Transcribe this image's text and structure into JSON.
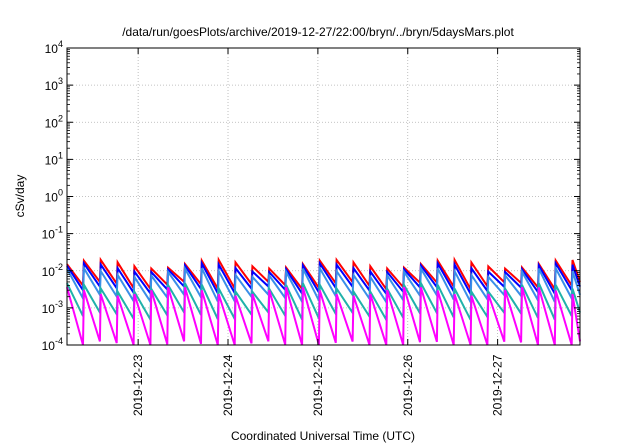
{
  "chart_data": {
    "type": "line",
    "title": "/data/run/goesPlots/archive/2019-12-27/22:00/bryn/../bryn/5daysMars.plot",
    "xlabel": "Coordinated Universal Time (UTC)",
    "ylabel": "cSv/day",
    "yscale": "log",
    "ylim": [
      0.0001,
      10000
    ],
    "xlim": [
      "2019-12-22 05:00",
      "2019-12-27 22:00"
    ],
    "grid": true,
    "legend": "none",
    "y_ticks": [
      {
        "base": "10",
        "exp": "-4"
      },
      {
        "base": "10",
        "exp": "-3"
      },
      {
        "base": "10",
        "exp": "-2"
      },
      {
        "base": "10",
        "exp": "-1"
      },
      {
        "base": "10",
        "exp": "0"
      },
      {
        "base": "10",
        "exp": "1"
      },
      {
        "base": "10",
        "exp": "2"
      },
      {
        "base": "10",
        "exp": "3"
      },
      {
        "base": "10",
        "exp": "4"
      }
    ],
    "x_ticks": [
      "2019-12-23",
      "2019-12-24",
      "2019-12-25",
      "2019-12-26",
      "2019-12-27"
    ],
    "sawtooth_period_hours": 4.5,
    "series": [
      {
        "color": "#ff0000",
        "peak": 0.015,
        "trough": 0.004
      },
      {
        "color": "#0000ff",
        "peak": 0.012,
        "trough": 0.003
      },
      {
        "color": "#3a8fe8",
        "peak": 0.009,
        "trough": 0.0018
      },
      {
        "color": "#20b2aa",
        "peak": 0.0035,
        "trough": 0.0006
      },
      {
        "color": "#ff00ff",
        "peak": 0.0028,
        "trough": 0.0001
      }
    ]
  }
}
